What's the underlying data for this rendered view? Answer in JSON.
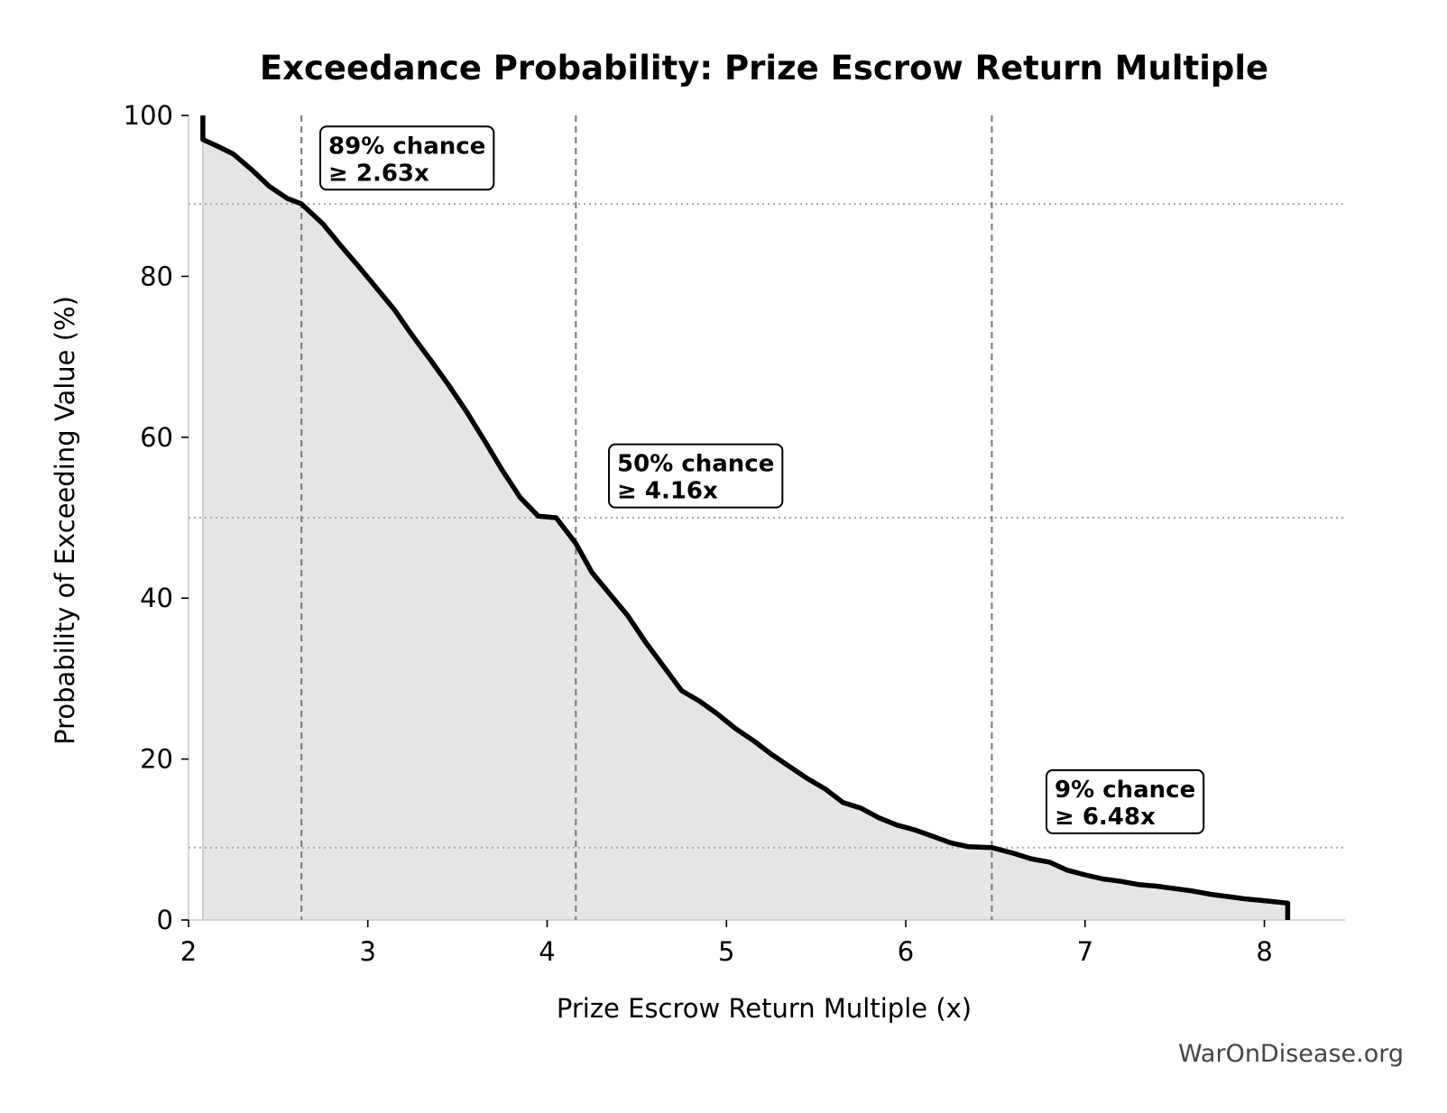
{
  "chart_data": {
    "type": "area",
    "title": "Exceedance Probability: Prize Escrow Return Multiple",
    "xlabel": "Prize Escrow Return Multiple (x)",
    "ylabel": "Probability of Exceeding Value (%)",
    "xlim": [
      2.0,
      8.45
    ],
    "ylim": [
      0,
      100
    ],
    "xticks": [
      2,
      3,
      4,
      5,
      6,
      7,
      8
    ],
    "yticks": [
      0,
      20,
      40,
      60,
      80,
      100
    ],
    "grid": false,
    "series": [
      {
        "x": [
          2.08,
          2.08,
          2.15,
          2.25,
          2.35,
          2.45,
          2.55,
          2.63,
          2.75,
          2.85,
          2.95,
          3.05,
          3.15,
          3.25,
          3.35,
          3.45,
          3.55,
          3.65,
          3.75,
          3.85,
          3.95,
          4.05,
          4.16,
          4.25,
          4.35,
          4.45,
          4.55,
          4.65,
          4.75,
          4.85,
          4.95,
          5.05,
          5.15,
          5.25,
          5.35,
          5.45,
          5.55,
          5.65,
          5.75,
          5.85,
          5.95,
          6.05,
          6.15,
          6.25,
          6.35,
          6.48,
          6.6,
          6.7,
          6.8,
          6.9,
          7.0,
          7.1,
          7.2,
          7.3,
          7.4,
          7.5,
          7.6,
          7.7,
          7.8,
          7.9,
          8.0,
          8.13,
          8.13
        ],
        "y": [
          100,
          97,
          96.3,
          95.2,
          93.3,
          91.2,
          89.7,
          89,
          86.5,
          83.8,
          81.2,
          78.5,
          75.8,
          72.6,
          69.6,
          66.5,
          63.2,
          59.6,
          55.9,
          52.5,
          50.2,
          50,
          46.8,
          43.2,
          40.5,
          37.8,
          34.5,
          31.5,
          28.5,
          27.2,
          25.6,
          23.8,
          22.3,
          20.6,
          19.1,
          17.6,
          16.3,
          14.6,
          13.9,
          12.7,
          11.8,
          11.2,
          10.4,
          9.6,
          9.1,
          9,
          8.3,
          7.6,
          7.2,
          6.2,
          5.6,
          5.1,
          4.8,
          4.4,
          4.2,
          3.9,
          3.6,
          3.2,
          2.9,
          2.6,
          2.4,
          2.1,
          0
        ]
      }
    ],
    "reference_lines": [
      {
        "x": 2.63,
        "y": 89
      },
      {
        "x": 4.16,
        "y": 50
      },
      {
        "x": 6.48,
        "y": 9
      }
    ],
    "annotations": [
      {
        "x": 2.78,
        "y": 97.5,
        "line1": "89% chance",
        "line2": "≥ 2.63x"
      },
      {
        "x": 4.39,
        "y": 58.0,
        "line1": "50% chance",
        "line2": "≥ 4.16x"
      },
      {
        "x": 6.83,
        "y": 17.5,
        "line1": "9% chance",
        "line2": "≥ 6.48x"
      }
    ],
    "watermark": "WarOnDisease.org",
    "colors": {
      "line": "#000000",
      "fill": "#e5e5e5",
      "ref_line": "#777777",
      "hline": "#aaaaaa",
      "spine": "#cccccc"
    }
  }
}
